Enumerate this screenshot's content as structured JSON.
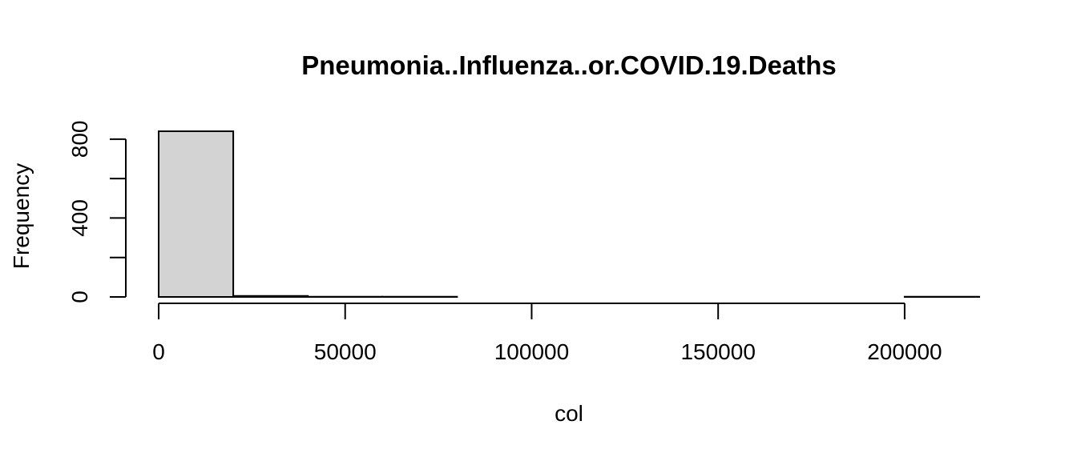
{
  "chart_data": {
    "type": "bar",
    "title": "Pneumonia..Influenza..or.COVID.19.Deaths",
    "xlabel": "col",
    "ylabel": "Frequency",
    "bins": [
      {
        "start": 0,
        "end": 20000,
        "count": 840
      },
      {
        "start": 20000,
        "end": 40000,
        "count": 5
      },
      {
        "start": 40000,
        "end": 60000,
        "count": 1
      },
      {
        "start": 60000,
        "end": 80000,
        "count": 1
      },
      {
        "start": 80000,
        "end": 100000,
        "count": 0
      },
      {
        "start": 100000,
        "end": 120000,
        "count": 0
      },
      {
        "start": 120000,
        "end": 140000,
        "count": 0
      },
      {
        "start": 140000,
        "end": 160000,
        "count": 0
      },
      {
        "start": 160000,
        "end": 180000,
        "count": 0
      },
      {
        "start": 180000,
        "end": 200000,
        "count": 0
      },
      {
        "start": 200000,
        "end": 220000,
        "count": 1
      }
    ],
    "xticks": [
      0,
      50000,
      100000,
      150000,
      200000
    ],
    "xtick_labels": [
      "0",
      "50000",
      "100000",
      "150000",
      "200000"
    ],
    "yticks": [
      0,
      200,
      400,
      600,
      800
    ],
    "ytick_labels": [
      "0",
      "",
      "400",
      "",
      "800"
    ],
    "xlim": [
      0,
      220000
    ],
    "ylim": [
      0,
      840
    ],
    "bar_color": "#d3d3d3",
    "grid": false,
    "legend": "none"
  }
}
